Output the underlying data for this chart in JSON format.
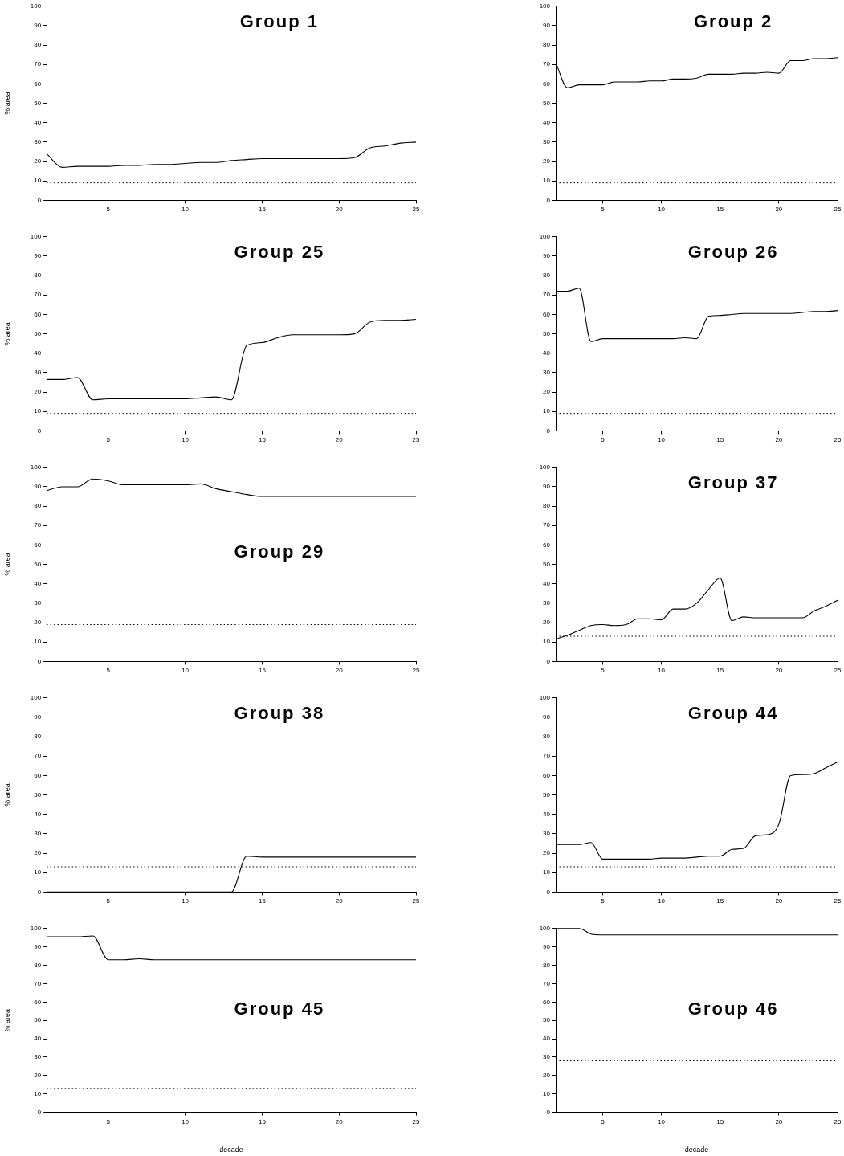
{
  "chart_data": [
    {
      "type": "line",
      "title": "Group 1",
      "ylabel": "% area",
      "x": [
        1,
        2,
        3,
        4,
        5,
        6,
        7,
        8,
        9,
        10,
        11,
        12,
        13,
        14,
        15,
        16,
        17,
        18,
        19,
        20,
        21,
        22,
        23,
        24,
        25
      ],
      "values": [
        24,
        17,
        17.5,
        17.5,
        17.5,
        18,
        18,
        18.5,
        18.5,
        19,
        19.5,
        19.5,
        20.5,
        21,
        21.5,
        21.5,
        21.5,
        21.5,
        21.5,
        21.5,
        22,
        27,
        28,
        29.5,
        30
      ],
      "color": "#000000",
      "xlim": [
        1,
        25
      ],
      "xticks": [
        5,
        10,
        15,
        20,
        25
      ],
      "ylim": [
        0,
        100
      ],
      "yticks": [
        0,
        10,
        20,
        30,
        40,
        50,
        60,
        70,
        80,
        90,
        100
      ],
      "grid": false,
      "legend": false,
      "marker": "none",
      "line_style": "solid",
      "ref_lines": [
        {
          "axis": "y",
          "value": 9,
          "line_style": "dotted"
        }
      ]
    },
    {
      "type": "line",
      "title": "Group 2",
      "x": [
        1,
        2,
        3,
        4,
        5,
        6,
        7,
        8,
        9,
        10,
        11,
        12,
        13,
        14,
        15,
        16,
        17,
        18,
        19,
        20,
        21,
        22,
        23,
        24,
        25
      ],
      "values": [
        71,
        58,
        59.5,
        59.5,
        59.5,
        61,
        61,
        61,
        61.5,
        61.5,
        62.5,
        62.5,
        63,
        65,
        65,
        65,
        65.5,
        65.5,
        66,
        65.5,
        72,
        72,
        73,
        73,
        73.5
      ],
      "color": "#000000",
      "xlim": [
        1,
        25
      ],
      "xticks": [
        5,
        10,
        15,
        20,
        25
      ],
      "ylim": [
        0,
        100
      ],
      "yticks": [
        0,
        10,
        20,
        30,
        40,
        50,
        60,
        70,
        80,
        90,
        100
      ],
      "grid": false,
      "legend": false,
      "marker": "none",
      "line_style": "solid",
      "ref_lines": [
        {
          "axis": "y",
          "value": 9,
          "line_style": "dotted"
        }
      ]
    },
    {
      "type": "line",
      "title": "Group 25",
      "ylabel": "% area",
      "x": [
        1,
        2,
        3,
        4,
        5,
        6,
        7,
        8,
        9,
        10,
        11,
        12,
        13,
        14,
        15,
        16,
        17,
        18,
        19,
        20,
        21,
        22,
        23,
        24,
        25
      ],
      "values": [
        26.5,
        26.5,
        27.5,
        16,
        16.5,
        16.5,
        16.5,
        16.5,
        16.5,
        16.5,
        17,
        17.5,
        16,
        44,
        45.5,
        48,
        49.5,
        49.5,
        49.5,
        49.5,
        50,
        56,
        57,
        57,
        57.5
      ],
      "color": "#000000",
      "xlim": [
        1,
        25
      ],
      "xticks": [
        5,
        10,
        15,
        20,
        25
      ],
      "ylim": [
        0,
        100
      ],
      "yticks": [
        0,
        10,
        20,
        30,
        40,
        50,
        60,
        70,
        80,
        90,
        100
      ],
      "grid": false,
      "legend": false,
      "marker": "none",
      "line_style": "solid",
      "ref_lines": [
        {
          "axis": "y",
          "value": 9,
          "line_style": "dotted"
        }
      ]
    },
    {
      "type": "line",
      "title": "Group 26",
      "x": [
        1,
        2,
        3,
        4,
        5,
        6,
        7,
        8,
        9,
        10,
        11,
        12,
        13,
        14,
        15,
        16,
        17,
        18,
        19,
        20,
        21,
        22,
        23,
        24,
        25
      ],
      "values": [
        72,
        72,
        73.5,
        46,
        47.5,
        47.5,
        47.5,
        47.5,
        47.5,
        47.5,
        47.5,
        48,
        47.5,
        59,
        59.5,
        60,
        60.5,
        60.5,
        60.5,
        60.5,
        60.5,
        61,
        61.5,
        61.5,
        62
      ],
      "color": "#000000",
      "xlim": [
        1,
        25
      ],
      "xticks": [
        5,
        10,
        15,
        20,
        25
      ],
      "ylim": [
        0,
        100
      ],
      "yticks": [
        0,
        10,
        20,
        30,
        40,
        50,
        60,
        70,
        80,
        90,
        100
      ],
      "grid": false,
      "legend": false,
      "marker": "none",
      "line_style": "solid",
      "ref_lines": [
        {
          "axis": "y",
          "value": 9,
          "line_style": "dotted"
        }
      ]
    },
    {
      "type": "line",
      "title": "Group 29",
      "ylabel": "% area",
      "x": [
        1,
        2,
        3,
        4,
        5,
        6,
        7,
        8,
        9,
        10,
        11,
        12,
        13,
        14,
        15,
        16,
        17,
        18,
        19,
        20,
        21,
        22,
        23,
        24,
        25
      ],
      "values": [
        88,
        90,
        90,
        94,
        93,
        91,
        91,
        91,
        91,
        91,
        91.5,
        89,
        87.5,
        86,
        85,
        85,
        85,
        85,
        85,
        85,
        85,
        85,
        85,
        85,
        85
      ],
      "color": "#000000",
      "xlim": [
        1,
        25
      ],
      "xticks": [
        5,
        10,
        15,
        20,
        25
      ],
      "ylim": [
        0,
        100
      ],
      "yticks": [
        0,
        10,
        20,
        30,
        40,
        50,
        60,
        70,
        80,
        90,
        100
      ],
      "grid": false,
      "legend": false,
      "marker": "none",
      "line_style": "solid",
      "ref_lines": [
        {
          "axis": "y",
          "value": 19,
          "line_style": "dotted"
        }
      ]
    },
    {
      "type": "line",
      "title": "Group 37",
      "x": [
        1,
        2,
        3,
        4,
        5,
        6,
        7,
        8,
        9,
        10,
        11,
        12,
        13,
        14,
        15,
        16,
        17,
        18,
        19,
        20,
        21,
        22,
        23,
        24,
        25
      ],
      "values": [
        11.5,
        13.5,
        16,
        18.5,
        19,
        18.5,
        19,
        22,
        22,
        21.5,
        27,
        27,
        30,
        37,
        43,
        21,
        23,
        22.5,
        22.5,
        22.5,
        22.5,
        22.5,
        26,
        28.5,
        31.5
      ],
      "color": "#000000",
      "xlim": [
        1,
        25
      ],
      "xticks": [
        5,
        10,
        15,
        20,
        25
      ],
      "ylim": [
        0,
        100
      ],
      "yticks": [
        0,
        10,
        20,
        30,
        40,
        50,
        60,
        70,
        80,
        90,
        100
      ],
      "grid": false,
      "legend": false,
      "marker": "none",
      "line_style": "solid",
      "ref_lines": [
        {
          "axis": "y",
          "value": 13,
          "line_style": "dotted"
        }
      ]
    },
    {
      "type": "line",
      "title": "Group 38",
      "ylabel": "% area",
      "x": [
        1,
        2,
        3,
        4,
        5,
        6,
        7,
        8,
        9,
        10,
        11,
        12,
        13,
        14,
        15,
        16,
        17,
        18,
        19,
        20,
        21,
        22,
        23,
        24,
        25
      ],
      "values": [
        0,
        0,
        0,
        0,
        0,
        0,
        0,
        0,
        0,
        0,
        0,
        0,
        0,
        18.5,
        18,
        18,
        18,
        18,
        18,
        18,
        18,
        18,
        18,
        18,
        18
      ],
      "color": "#000000",
      "xlim": [
        1,
        25
      ],
      "xticks": [
        5,
        10,
        15,
        20,
        25
      ],
      "ylim": [
        0,
        100
      ],
      "yticks": [
        0,
        10,
        20,
        30,
        40,
        50,
        60,
        70,
        80,
        90,
        100
      ],
      "grid": false,
      "legend": false,
      "marker": "none",
      "line_style": "solid",
      "ref_lines": [
        {
          "axis": "y",
          "value": 13,
          "line_style": "dotted"
        }
      ]
    },
    {
      "type": "line",
      "title": "Group 44",
      "x": [
        1,
        2,
        3,
        4,
        5,
        6,
        7,
        8,
        9,
        10,
        11,
        12,
        13,
        14,
        15,
        16,
        17,
        18,
        19,
        20,
        21,
        22,
        23,
        24,
        25
      ],
      "values": [
        24.5,
        24.5,
        24.5,
        25.5,
        17,
        17,
        17,
        17,
        17,
        17.5,
        17.5,
        17.5,
        18,
        18.5,
        18.5,
        22,
        22.5,
        29,
        29.5,
        35,
        60,
        60.5,
        61,
        64,
        67
      ],
      "color": "#000000",
      "xlim": [
        1,
        25
      ],
      "xticks": [
        5,
        10,
        15,
        20,
        25
      ],
      "ylim": [
        0,
        100
      ],
      "yticks": [
        0,
        10,
        20,
        30,
        40,
        50,
        60,
        70,
        80,
        90,
        100
      ],
      "grid": false,
      "legend": false,
      "marker": "none",
      "line_style": "solid",
      "ref_lines": [
        {
          "axis": "y",
          "value": 13,
          "line_style": "dotted"
        }
      ]
    },
    {
      "type": "line",
      "title": "Group 45",
      "ylabel": "% area",
      "xlabel": "decade",
      "x": [
        1,
        2,
        3,
        4,
        5,
        6,
        7,
        8,
        9,
        10,
        11,
        12,
        13,
        14,
        15,
        16,
        17,
        18,
        19,
        20,
        21,
        22,
        23,
        24,
        25
      ],
      "values": [
        95.5,
        95.5,
        95.5,
        96,
        83,
        83,
        83.5,
        83,
        83,
        83,
        83,
        83,
        83,
        83,
        83,
        83,
        83,
        83,
        83,
        83,
        83,
        83,
        83,
        83,
        83
      ],
      "color": "#000000",
      "xlim": [
        1,
        25
      ],
      "xticks": [
        5,
        10,
        15,
        20,
        25
      ],
      "ylim": [
        0,
        100
      ],
      "yticks": [
        0,
        10,
        20,
        30,
        40,
        50,
        60,
        70,
        80,
        90,
        100
      ],
      "grid": false,
      "legend": false,
      "marker": "none",
      "line_style": "solid",
      "ref_lines": [
        {
          "axis": "y",
          "value": 13,
          "line_style": "dotted"
        }
      ]
    },
    {
      "type": "line",
      "title": "Group 46",
      "xlabel": "decade",
      "x": [
        1,
        2,
        3,
        4,
        5,
        6,
        7,
        8,
        9,
        10,
        11,
        12,
        13,
        14,
        15,
        16,
        17,
        18,
        19,
        20,
        21,
        22,
        23,
        24,
        25
      ],
      "values": [
        100,
        100,
        100,
        97,
        96.5,
        96.5,
        96.5,
        96.5,
        96.5,
        96.5,
        96.5,
        96.5,
        96.5,
        96.5,
        96.5,
        96.5,
        96.5,
        96.5,
        96.5,
        96.5,
        96.5,
        96.5,
        96.5,
        96.5,
        96.5
      ],
      "color": "#000000",
      "xlim": [
        1,
        25
      ],
      "xticks": [
        5,
        10,
        15,
        20,
        25
      ],
      "ylim": [
        0,
        100
      ],
      "yticks": [
        0,
        10,
        20,
        30,
        40,
        50,
        60,
        70,
        80,
        90,
        100
      ],
      "grid": false,
      "legend": false,
      "marker": "none",
      "line_style": "solid",
      "ref_lines": [
        {
          "axis": "y",
          "value": 28,
          "line_style": "dotted"
        }
      ]
    }
  ]
}
